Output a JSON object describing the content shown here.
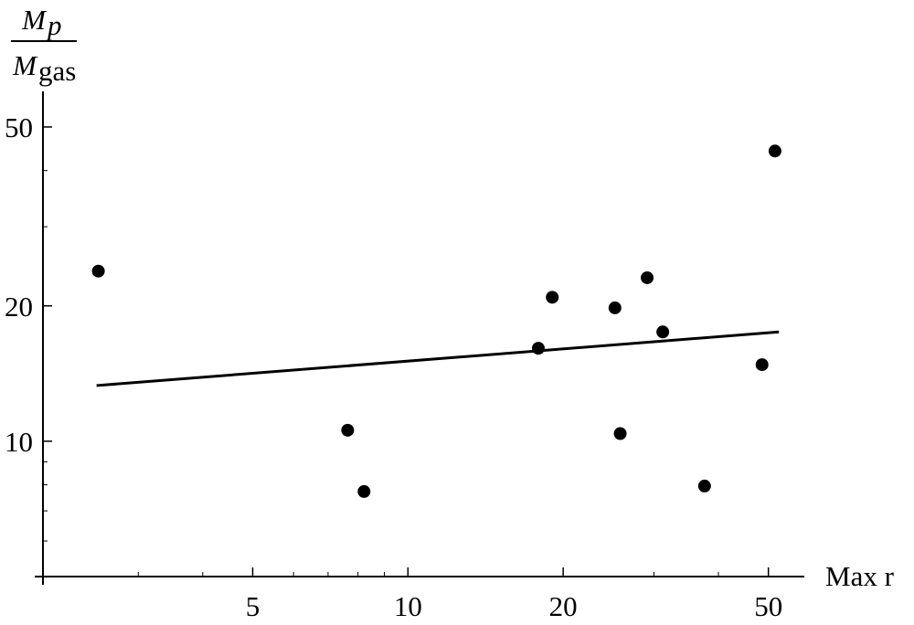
{
  "chart_data": {
    "type": "scatter",
    "xlabel": "Max r",
    "ylabel": {
      "numerator": "M",
      "numerator_sub": "p",
      "denominator": "M",
      "denominator_sub": "gas"
    },
    "xscale": "log",
    "yscale": "log",
    "xlim": [
      1.96,
      58.7
    ],
    "ylim": [
      5.0,
      60
    ],
    "xticks": [
      5,
      10,
      20,
      50
    ],
    "yticks": [
      10,
      20,
      50
    ],
    "xminor_ticks": [
      3,
      4,
      6,
      7,
      8,
      9,
      30,
      40
    ],
    "yminor_ticks": [
      6,
      7,
      8,
      9,
      30,
      40
    ],
    "series": [
      {
        "color": "#000000",
        "x": [
          2.51,
          7.64,
          8.22,
          17.9,
          19.05,
          25.2,
          25.8,
          29.1,
          31.2,
          37.6,
          48.6,
          51.5
        ],
        "values": [
          23.9,
          10.58,
          7.73,
          16.1,
          20.9,
          19.8,
          10.4,
          23.1,
          17.5,
          7.95,
          14.8,
          44.2
        ]
      }
    ],
    "fit_line": {
      "color": "#000000",
      "x": [
        2.49,
        52.4
      ],
      "values": [
        13.3,
        17.5
      ]
    }
  }
}
